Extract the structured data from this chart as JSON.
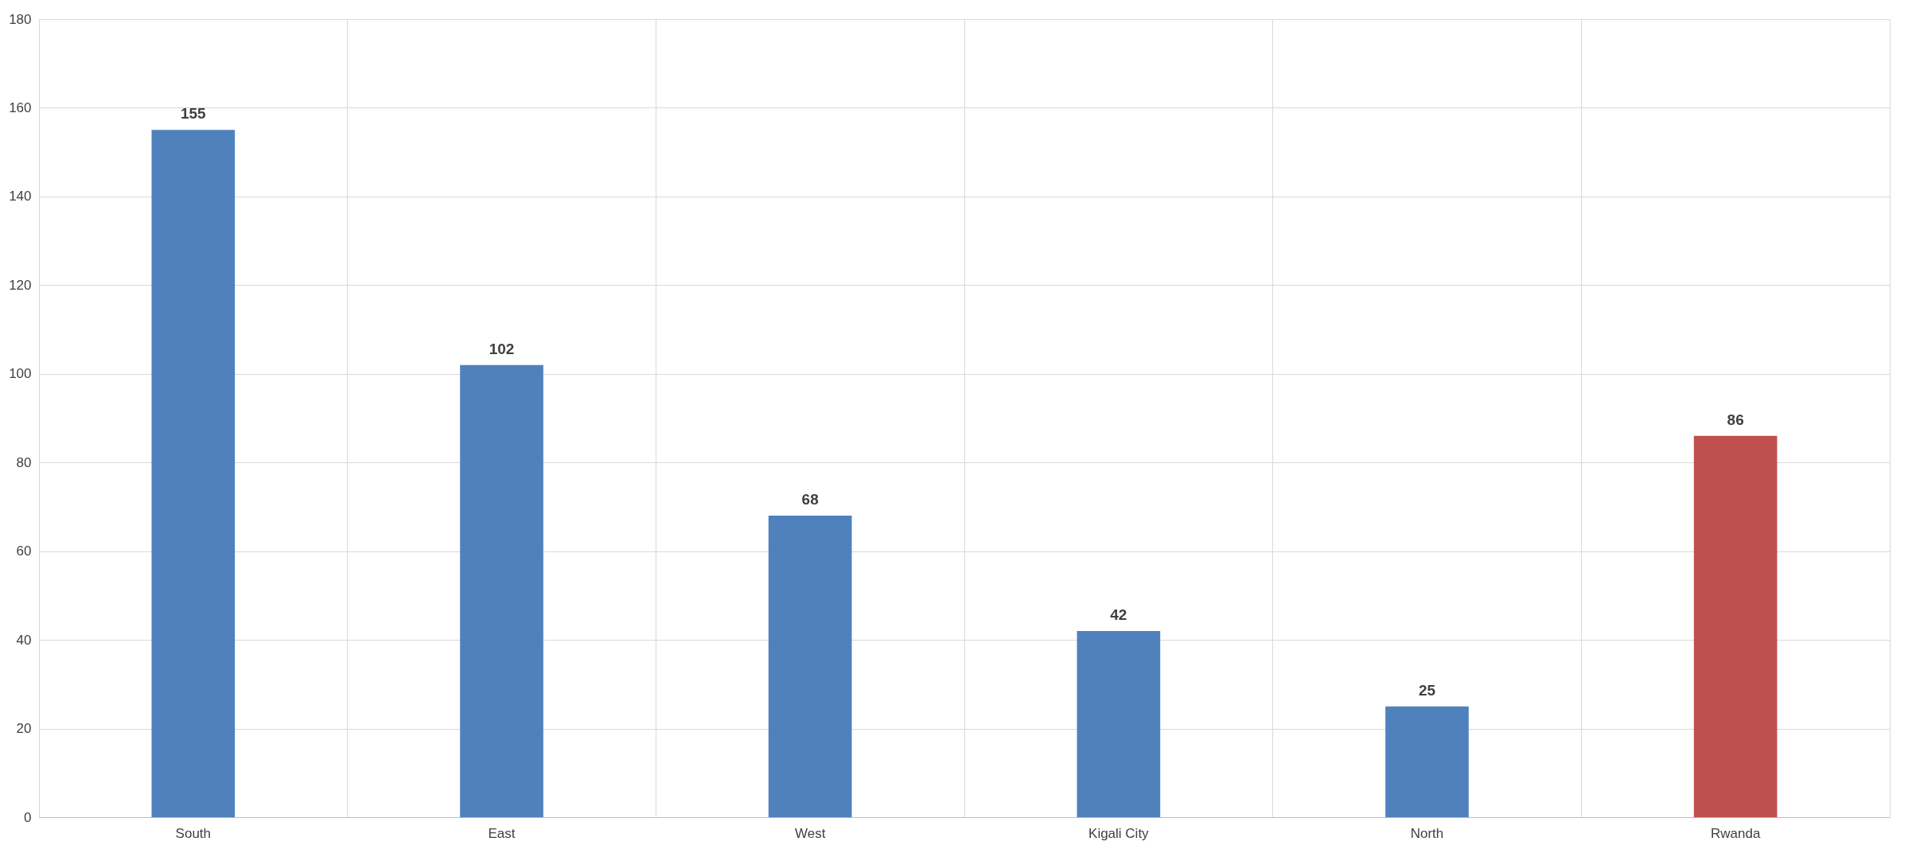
{
  "chart_data": {
    "type": "bar",
    "categories": [
      "South",
      "East",
      "West",
      "Kigali City",
      "North",
      "Rwanda"
    ],
    "values": [
      155,
      102,
      68,
      42,
      25,
      86
    ],
    "colors": [
      "#4f81bd",
      "#4f81bd",
      "#4f81bd",
      "#4f81bd",
      "#4f81bd",
      "#c0504d"
    ],
    "ylim": [
      0,
      180
    ],
    "yticks": [
      0,
      20,
      40,
      60,
      80,
      100,
      120,
      140,
      160,
      180
    ],
    "grid": true,
    "data_labels": true
  }
}
